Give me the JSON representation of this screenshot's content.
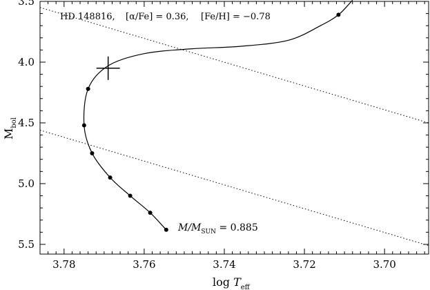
{
  "chart_data": {
    "type": "line",
    "annotation_segments": [
      {
        "data-name": "star-label",
        "text": "HD 148816,"
      },
      {
        "data-name": "alpha-fe-label",
        "text": "[α/Fe] = 0.36,"
      },
      {
        "data-name": "fe-h-label",
        "text": "[Fe/H] = −0.78"
      }
    ],
    "mass_label": {
      "prefix": "M/M",
      "sub": "SUN",
      "suffix": " = 0.885"
    },
    "xlabel": {
      "main": "log ",
      "italic": "T",
      "sub": "eff"
    },
    "ylabel": {
      "main": "M",
      "sub": "bol"
    },
    "xlim": [
      3.786,
      3.689
    ],
    "ylim": [
      5.58,
      3.5
    ],
    "x_ticks": [
      {
        "value": 3.78,
        "label": "3.78"
      },
      {
        "value": 3.76,
        "label": "3.76"
      },
      {
        "value": 3.74,
        "label": "3.74"
      },
      {
        "value": 3.72,
        "label": "3.72"
      },
      {
        "value": 3.7,
        "label": "3.70"
      }
    ],
    "y_ticks": [
      {
        "value": 3.5,
        "label": "3.5"
      },
      {
        "value": 4.0,
        "label": "4.0"
      },
      {
        "value": 4.5,
        "label": "4.5"
      },
      {
        "value": 5.0,
        "label": "5.0"
      },
      {
        "value": 5.5,
        "label": "5.5"
      }
    ],
    "track": [
      {
        "x": 3.7545,
        "y": 5.38
      },
      {
        "x": 3.7585,
        "y": 5.24
      },
      {
        "x": 3.7635,
        "y": 5.1
      },
      {
        "x": 3.7685,
        "y": 4.95
      },
      {
        "x": 3.773,
        "y": 4.75
      },
      {
        "x": 3.775,
        "y": 4.52
      },
      {
        "x": 3.774,
        "y": 4.22
      },
      {
        "x": 3.769,
        "y": 4.03
      },
      {
        "x": 3.76,
        "y": 3.93
      },
      {
        "x": 3.748,
        "y": 3.89
      },
      {
        "x": 3.736,
        "y": 3.87
      },
      {
        "x": 3.724,
        "y": 3.82
      },
      {
        "x": 3.716,
        "y": 3.7
      },
      {
        "x": 3.7115,
        "y": 3.61
      },
      {
        "x": 3.708,
        "y": 3.49
      }
    ],
    "points": [
      {
        "x": 3.7545,
        "y": 5.38
      },
      {
        "x": 3.7585,
        "y": 5.24
      },
      {
        "x": 3.7635,
        "y": 5.1
      },
      {
        "x": 3.7685,
        "y": 4.95
      },
      {
        "x": 3.773,
        "y": 4.75
      },
      {
        "x": 3.775,
        "y": 4.52
      },
      {
        "x": 3.774,
        "y": 4.22
      },
      {
        "x": 3.7115,
        "y": 3.61
      }
    ],
    "star_position": {
      "x": 3.769,
      "y": 4.05
    },
    "dotted_lines": [
      {
        "x1": 3.786,
        "y1": 3.55,
        "x2": 3.689,
        "y2": 4.5
      },
      {
        "x1": 3.786,
        "y1": 4.56,
        "x2": 3.689,
        "y2": 5.51
      }
    ],
    "grid": false,
    "colors": {
      "line": "#000000",
      "background": "#ffffff"
    }
  }
}
